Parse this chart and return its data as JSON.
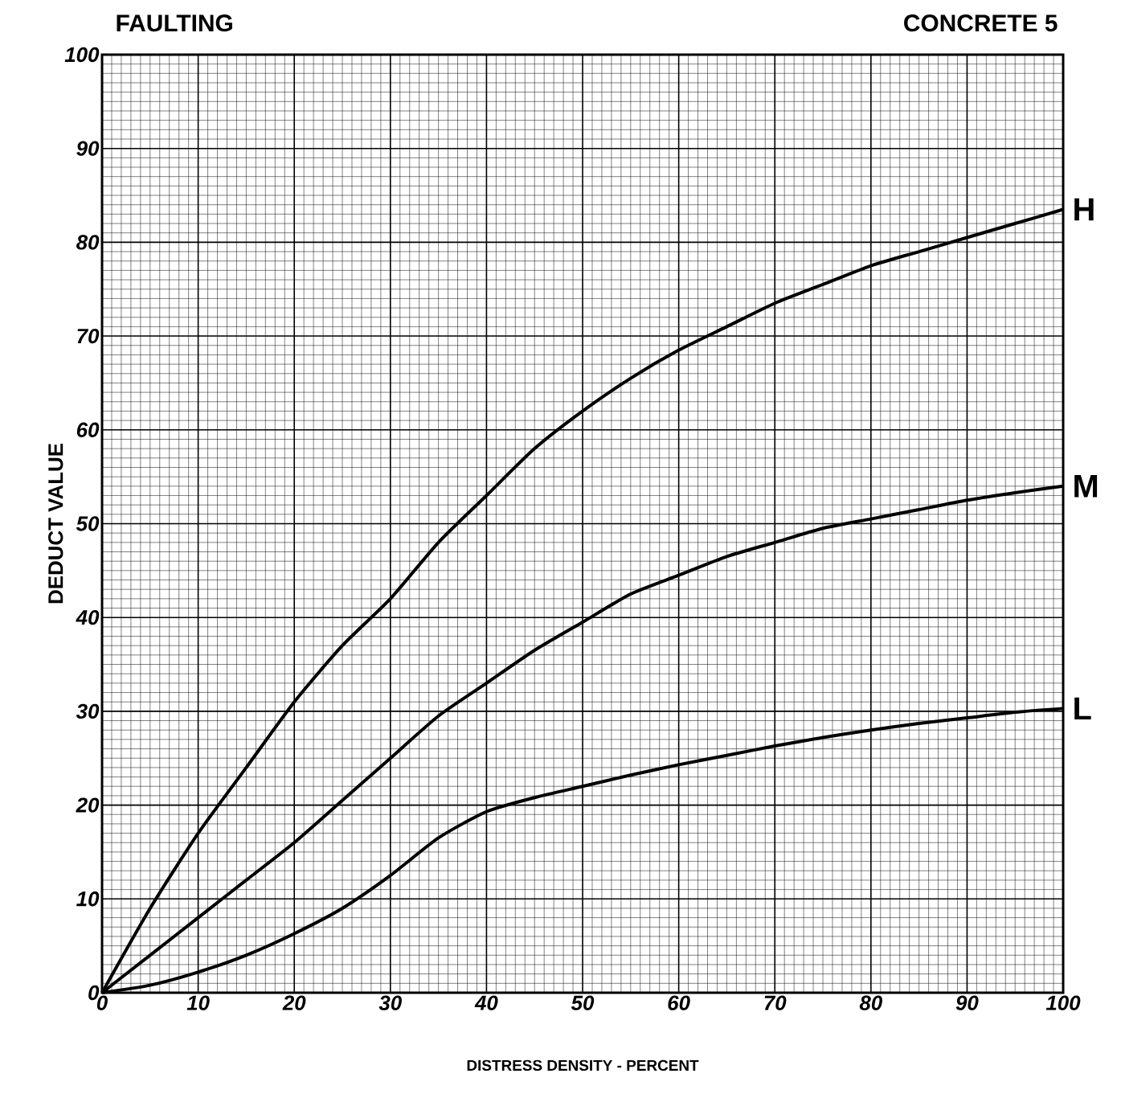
{
  "chart_data": {
    "type": "line",
    "title": "FAULTING",
    "subtitle": "CONCRETE 5",
    "xlabel": "DISTRESS DENSITY - PERCENT",
    "ylabel": "DEDUCT VALUE",
    "x": [
      0,
      5,
      10,
      15,
      20,
      25,
      30,
      35,
      40,
      45,
      50,
      55,
      60,
      65,
      70,
      75,
      80,
      85,
      90,
      95,
      100
    ],
    "series": [
      {
        "name": "H",
        "color": "#000000",
        "values": [
          0,
          9,
          17,
          24,
          31,
          37,
          42,
          48,
          53,
          58,
          62,
          65.5,
          68.5,
          71,
          73.5,
          75.5,
          77.5,
          79,
          80.5,
          82,
          83.5
        ]
      },
      {
        "name": "M",
        "color": "#000000",
        "values": [
          0,
          4,
          8,
          12,
          16,
          20.5,
          25,
          29.5,
          33,
          36.5,
          39.5,
          42.5,
          44.5,
          46.5,
          48,
          49.5,
          50.5,
          51.5,
          52.5,
          53.3,
          54
        ]
      },
      {
        "name": "L",
        "color": "#000000",
        "values": [
          0,
          0.8,
          2.2,
          4,
          6.3,
          9,
          12.5,
          16.5,
          19.3,
          20.8,
          22,
          23.2,
          24.3,
          25.3,
          26.3,
          27.2,
          28,
          28.7,
          29.3,
          29.9,
          30.3
        ]
      }
    ],
    "xlim": [
      0,
      100
    ],
    "ylim": [
      0,
      100
    ],
    "xticks": [
      0,
      10,
      20,
      30,
      40,
      50,
      60,
      70,
      80,
      90,
      100
    ],
    "yticks": [
      0,
      10,
      20,
      30,
      40,
      50,
      60,
      70,
      80,
      90,
      100
    ],
    "grid": true,
    "legend": false,
    "marker": "none",
    "line_style": "solid"
  }
}
